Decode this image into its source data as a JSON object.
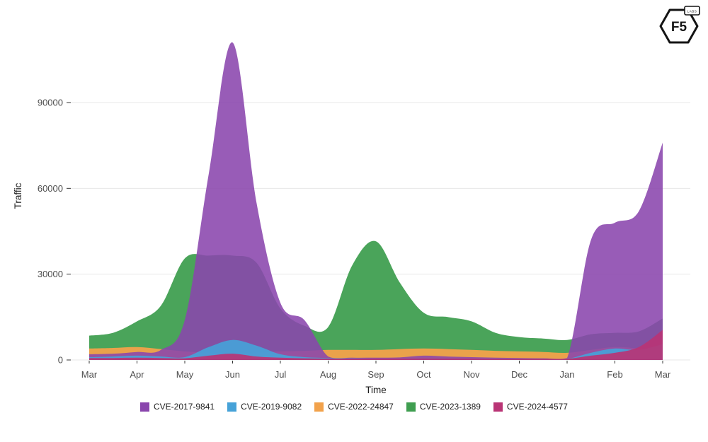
{
  "page": {
    "background": "#ffffff"
  },
  "header": {
    "logo_text": "F5",
    "logo_badge": "LABS"
  },
  "chart_data": {
    "type": "area",
    "variant": "overlapping-areas",
    "title": "",
    "xlabel": "Time",
    "ylabel": "Traffic",
    "x_tick_labels": [
      "Mar",
      "Apr",
      "May",
      "Jun",
      "Jul",
      "Aug",
      "Sep",
      "Oct",
      "Nov",
      "Dec",
      "Jan",
      "Feb",
      "Mar"
    ],
    "y_ticks": [
      0,
      30000,
      60000,
      90000
    ],
    "ylim": [
      0,
      115000
    ],
    "grid": "horizontal",
    "grid_color": "#e7e7e7",
    "text_color": "#4d4d4d",
    "axis_title_color": "#1a1a1a",
    "legend_position": "bottom",
    "x": [
      0,
      0.5,
      1,
      1.5,
      2,
      2.5,
      3,
      3.5,
      4,
      4.5,
      5,
      5.5,
      6,
      6.5,
      7,
      7.5,
      8,
      8.5,
      9,
      9.5,
      10,
      10.5,
      11,
      11.5,
      12
    ],
    "series": [
      {
        "name": "CVE-2017-9841",
        "color": "#8a46ad",
        "values": [
          2000,
          2200,
          2800,
          3500,
          14000,
          65000,
          111000,
          55000,
          20000,
          14000,
          1200,
          800,
          800,
          900,
          1500,
          1200,
          1000,
          800,
          700,
          600,
          700,
          42000,
          48000,
          52000,
          76000
        ]
      },
      {
        "name": "CVE-2019-9082",
        "color": "#46a2d8",
        "values": [
          1000,
          1200,
          1500,
          1200,
          1000,
          4500,
          7000,
          5000,
          2000,
          1000,
          700,
          600,
          500,
          500,
          600,
          500,
          500,
          400,
          400,
          400,
          400,
          2500,
          4000,
          3500,
          5500
        ]
      },
      {
        "name": "CVE-2022-24847",
        "color": "#f2a24b",
        "values": [
          4000,
          4200,
          4500,
          3800,
          3000,
          2500,
          2200,
          2500,
          3000,
          3200,
          3500,
          3500,
          3500,
          3800,
          4000,
          3800,
          3500,
          3200,
          3000,
          2800,
          2500,
          3500,
          4500,
          4000,
          3000
        ]
      },
      {
        "name": "CVE-2023-1389",
        "color": "#3f9e50",
        "values": [
          8500,
          9500,
          13500,
          19000,
          35500,
          36500,
          36500,
          34000,
          18000,
          12000,
          11500,
          33000,
          41500,
          27000,
          16500,
          15000,
          13500,
          9500,
          8000,
          7500,
          7000,
          9000,
          9500,
          10000,
          14500
        ]
      },
      {
        "name": "CVE-2024-4577",
        "color": "#b93475",
        "values": [
          700,
          700,
          800,
          700,
          600,
          1500,
          2200,
          1200,
          800,
          600,
          500,
          500,
          500,
          500,
          600,
          500,
          500,
          400,
          400,
          400,
          400,
          1500,
          2500,
          4500,
          10500
        ]
      }
    ],
    "draw_order": [
      "CVE-2023-1389",
      "CVE-2022-24847",
      "CVE-2017-9841",
      "CVE-2019-9082",
      "CVE-2024-4577"
    ]
  }
}
